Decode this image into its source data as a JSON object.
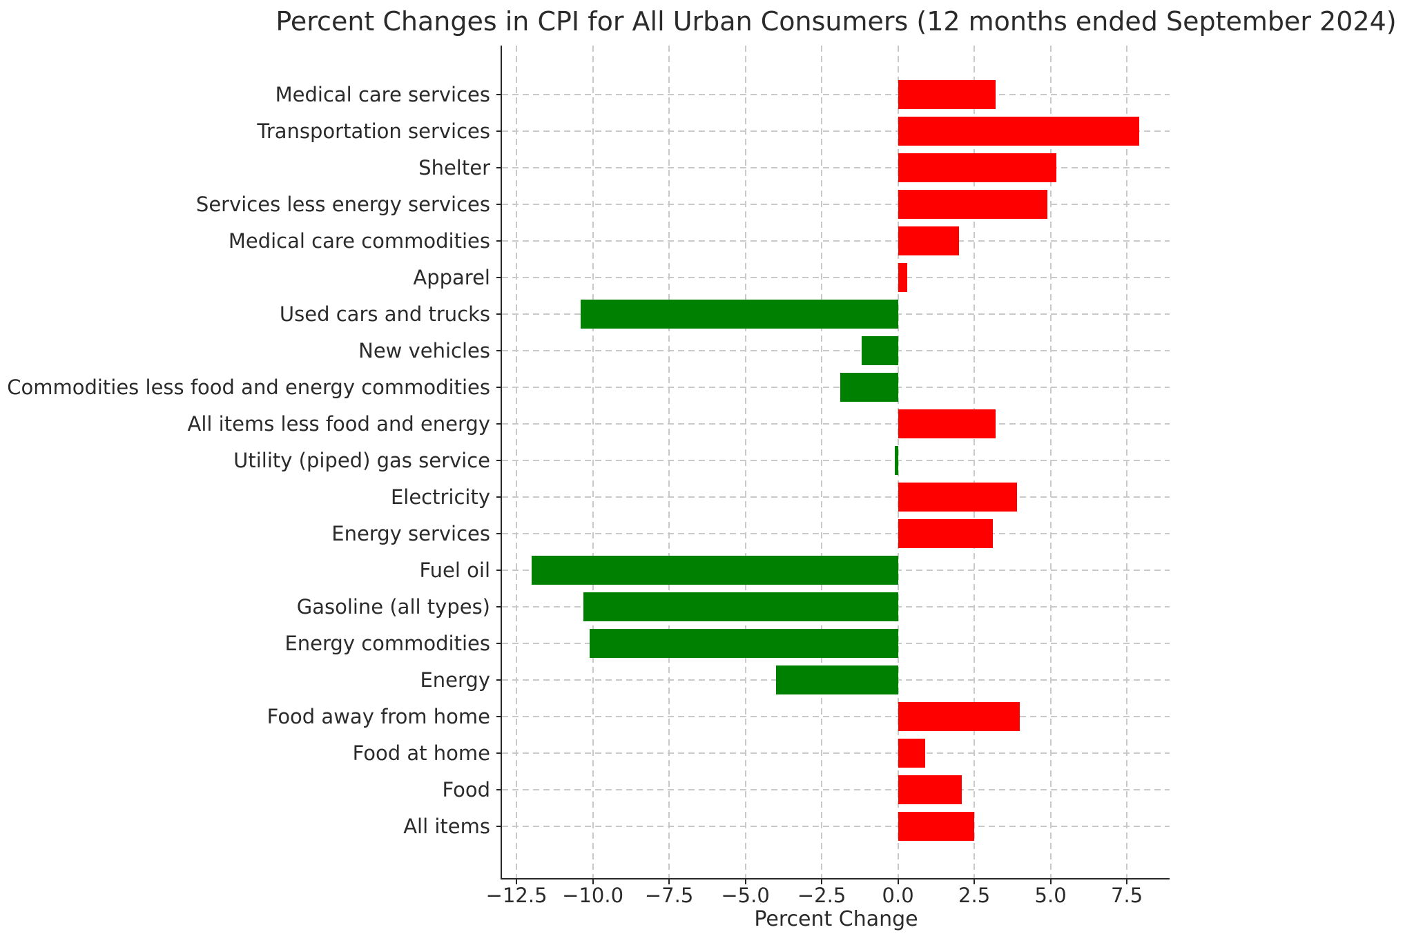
{
  "chart_data": {
    "type": "bar",
    "orientation": "horizontal",
    "title": "Percent Changes in CPI for All Urban Consumers (12 months ended September 2024)",
    "xlabel": "Percent Change",
    "ylabel": "",
    "grid": true,
    "legend": false,
    "xlim": [
      -13.0,
      8.9
    ],
    "xticks": [
      -12.5,
      -10.0,
      -7.5,
      -5.0,
      -2.5,
      0.0,
      2.5,
      5.0,
      7.5
    ],
    "xtick_labels": [
      "−12.5",
      "−10.0",
      "−7.5",
      "−5.0",
      "−2.5",
      "0.0",
      "2.5",
      "5.0",
      "7.5"
    ],
    "categories_top_to_bottom": [
      "Medical care services",
      "Transportation services",
      "Shelter",
      "Services less energy services",
      "Medical care commodities",
      "Apparel",
      "Used cars and trucks",
      "New vehicles",
      "Commodities less food and energy commodities",
      "All items less food and energy",
      "Utility (piped) gas service",
      "Electricity",
      "Energy services",
      "Fuel oil",
      "Gasoline (all types)",
      "Energy commodities",
      "Energy",
      "Food away from home",
      "Food at home",
      "Food",
      "All items"
    ],
    "values": [
      3.2,
      7.9,
      5.2,
      4.9,
      2.0,
      0.3,
      -10.4,
      -1.2,
      -1.9,
      3.2,
      -0.1,
      3.9,
      3.1,
      -12.0,
      -10.3,
      -10.1,
      -4.0,
      4.0,
      0.9,
      2.1,
      2.5
    ],
    "positive_color": "#ff0000",
    "negative_color": "#008000",
    "gridline_color": "#c9c9c9",
    "axis_color": "#262626"
  }
}
